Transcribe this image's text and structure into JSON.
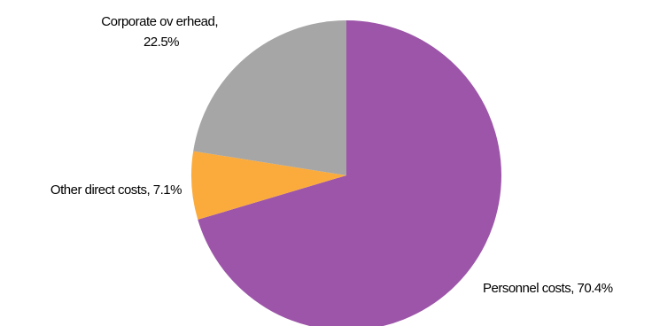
{
  "chart_data": {
    "type": "pie",
    "title": "",
    "slices": [
      {
        "name": "Personnel costs",
        "value": 70.4,
        "label": "Personnel costs, 70.4%",
        "color": "#9c55a8"
      },
      {
        "name": "Other direct costs",
        "value": 7.1,
        "label": "Other direct costs, 7.1%",
        "color": "#fbab3c"
      },
      {
        "name": "Corporate overhead",
        "value": 22.5,
        "label_lines": [
          "Corporate ov erhead,",
          "22.5%"
        ],
        "color": "#a6a6a6"
      }
    ],
    "legend": "none",
    "start_angle": "12 o'clock",
    "direction": "clockwise"
  }
}
